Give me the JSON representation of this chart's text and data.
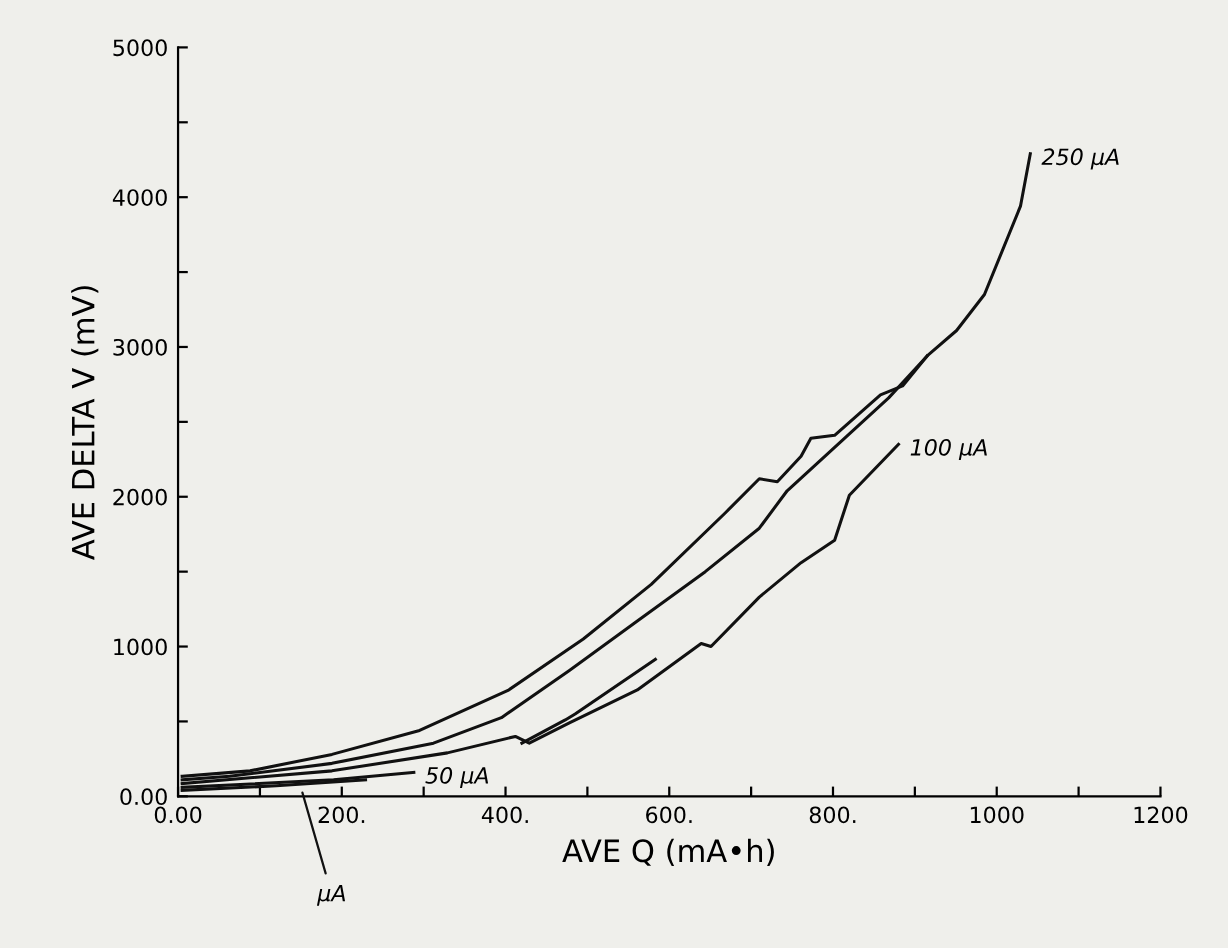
{
  "chart_data": {
    "type": "line",
    "xlabel": "AVE Q (mA•h)",
    "ylabel": "AVE DELTA V (mV)",
    "xlim": [
      0,
      1200
    ],
    "ylim": [
      0,
      5000
    ],
    "xticks": [
      {
        "value": 0,
        "label": "0.00"
      },
      {
        "value": 100,
        "label": null
      },
      {
        "value": 200,
        "label": "200."
      },
      {
        "value": 300,
        "label": null
      },
      {
        "value": 400,
        "label": "400."
      },
      {
        "value": 500,
        "label": null
      },
      {
        "value": 600,
        "label": "600."
      },
      {
        "value": 700,
        "label": null
      },
      {
        "value": 800,
        "label": "800."
      },
      {
        "value": 900,
        "label": null
      },
      {
        "value": 1000,
        "label": "1000"
      },
      {
        "value": 1100,
        "label": null
      },
      {
        "value": 1200,
        "label": "1200"
      }
    ],
    "yticks": [
      {
        "value": 0,
        "label": "0.00"
      },
      {
        "value": 500,
        "label": null
      },
      {
        "value": 1000,
        "label": "1000"
      },
      {
        "value": 1500,
        "label": null
      },
      {
        "value": 2000,
        "label": "2000"
      },
      {
        "value": 2500,
        "label": null
      },
      {
        "value": 3000,
        "label": "3000"
      },
      {
        "value": 3500,
        "label": null
      },
      {
        "value": 4000,
        "label": "4000"
      },
      {
        "value": 4500,
        "label": null
      },
      {
        "value": 5000,
        "label": "5000"
      }
    ],
    "grid": false,
    "legend": false,
    "marker": "none",
    "line_style": "solid",
    "series": [
      {
        "color": "#111111",
        "x": [
          5,
          88,
          188,
          295,
          403,
          495,
          578,
          668,
          710,
          732,
          761,
          773,
          802,
          858,
          885,
          915
        ],
        "values": [
          134,
          170,
          280,
          440,
          707,
          1050,
          1415,
          1890,
          2120,
          2100,
          2270,
          2390,
          2410,
          2680,
          2740,
          2940
        ]
      },
      {
        "color": "#111111",
        "x": [
          5,
          63,
          188,
          312,
          395,
          478,
          561,
          644,
          710,
          744,
          868,
          915,
          951,
          985,
          1029,
          1041
        ],
        "values": [
          110,
          134,
          220,
          355,
          525,
          840,
          1170,
          1500,
          1790,
          2040,
          2660,
          2940,
          3110,
          3350,
          3940,
          4290
        ]
      },
      {
        "color": "#111111",
        "x": [
          5,
          188,
          329,
          412,
          429,
          478,
          561,
          639,
          651,
          710,
          761,
          802,
          820,
          880
        ],
        "values": [
          85,
          170,
          290,
          400,
          355,
          490,
          710,
          1020,
          1000,
          1330,
          1560,
          1710,
          2010,
          2350
        ]
      },
      {
        "color": "#111111",
        "x": [
          420,
          473,
          485,
          583
        ],
        "values": [
          355,
          510,
          550,
          915
        ]
      },
      {
        "color": "#111111",
        "x": [
          5,
          190,
          288
        ],
        "values": [
          60,
          110,
          160
        ]
      },
      {
        "color": "#111111",
        "x": [
          5,
          120,
          229
        ],
        "values": [
          40,
          70,
          110
        ]
      }
    ],
    "annotations": [
      {
        "text": "250 µA",
        "x": 1041,
        "y": 4290
      },
      {
        "text": "100 µA",
        "x": 880,
        "y": 2350
      },
      {
        "text": "50 µA",
        "x": 288,
        "y": 160
      },
      {
        "text": "µA",
        "x": 150,
        "y": 60
      }
    ]
  }
}
